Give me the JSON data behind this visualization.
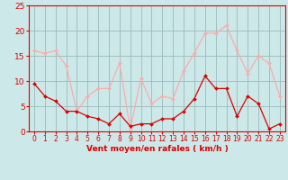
{
  "x": [
    0,
    1,
    2,
    3,
    4,
    5,
    6,
    7,
    8,
    9,
    10,
    11,
    12,
    13,
    14,
    15,
    16,
    17,
    18,
    19,
    20,
    21,
    22,
    23
  ],
  "vent_moyen": [
    9.5,
    7,
    6,
    4,
    4,
    3,
    2.5,
    1.5,
    3.5,
    1,
    1.5,
    1.5,
    2.5,
    2.5,
    4,
    6.5,
    11,
    8.5,
    8.5,
    3,
    7,
    5.5,
    0.5,
    1.5
  ],
  "rafales": [
    16,
    15.5,
    16,
    13,
    4,
    7,
    8.5,
    8.5,
    13.5,
    0.5,
    10.5,
    5.5,
    7,
    6.5,
    12,
    15.5,
    19.5,
    19.5,
    21,
    16,
    11.5,
    15,
    13.5,
    7
  ],
  "color_moyen": "#dd0000",
  "color_rafales": "#ffaaaa",
  "bg_color": "#cce8e8",
  "grid_color": "#99bbbb",
  "xlabel": "Vent moyen/en rafales ( km/h )",
  "xlabel_color": "#dd0000",
  "tick_color": "#dd0000",
  "ylim": [
    0,
    25
  ],
  "yticks": [
    0,
    5,
    10,
    15,
    20,
    25
  ],
  "xlim": [
    -0.5,
    23.5
  ]
}
